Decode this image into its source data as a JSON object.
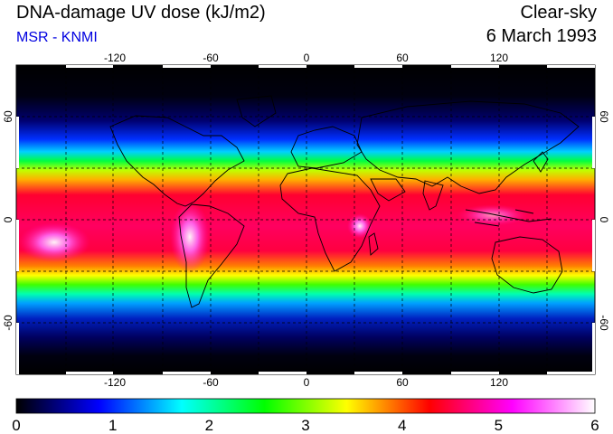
{
  "header": {
    "title": "DNA-damage UV dose (kJ/m2)",
    "source": "MSR - KNMI",
    "condition": "Clear-sky",
    "date": "6 March 1993"
  },
  "map": {
    "projection": "equirectangular",
    "lon_ticks": [
      "-120",
      "-60",
      "0",
      "60",
      "120"
    ],
    "lat_ticks": [
      "60",
      "0",
      "-60"
    ],
    "grid": true,
    "colors": {
      "background": "#ffffff",
      "coastline": "#000000",
      "grid": "#000000"
    }
  },
  "colorbar": {
    "min": 0,
    "max": 6,
    "tick_labels": [
      "0",
      "1",
      "2",
      "3",
      "4",
      "5",
      "6"
    ],
    "stops": [
      "#000000",
      "#0000ff",
      "#00ffff",
      "#00ff00",
      "#ffff00",
      "#ff0000",
      "#ff00ff",
      "#ffffff"
    ]
  }
}
